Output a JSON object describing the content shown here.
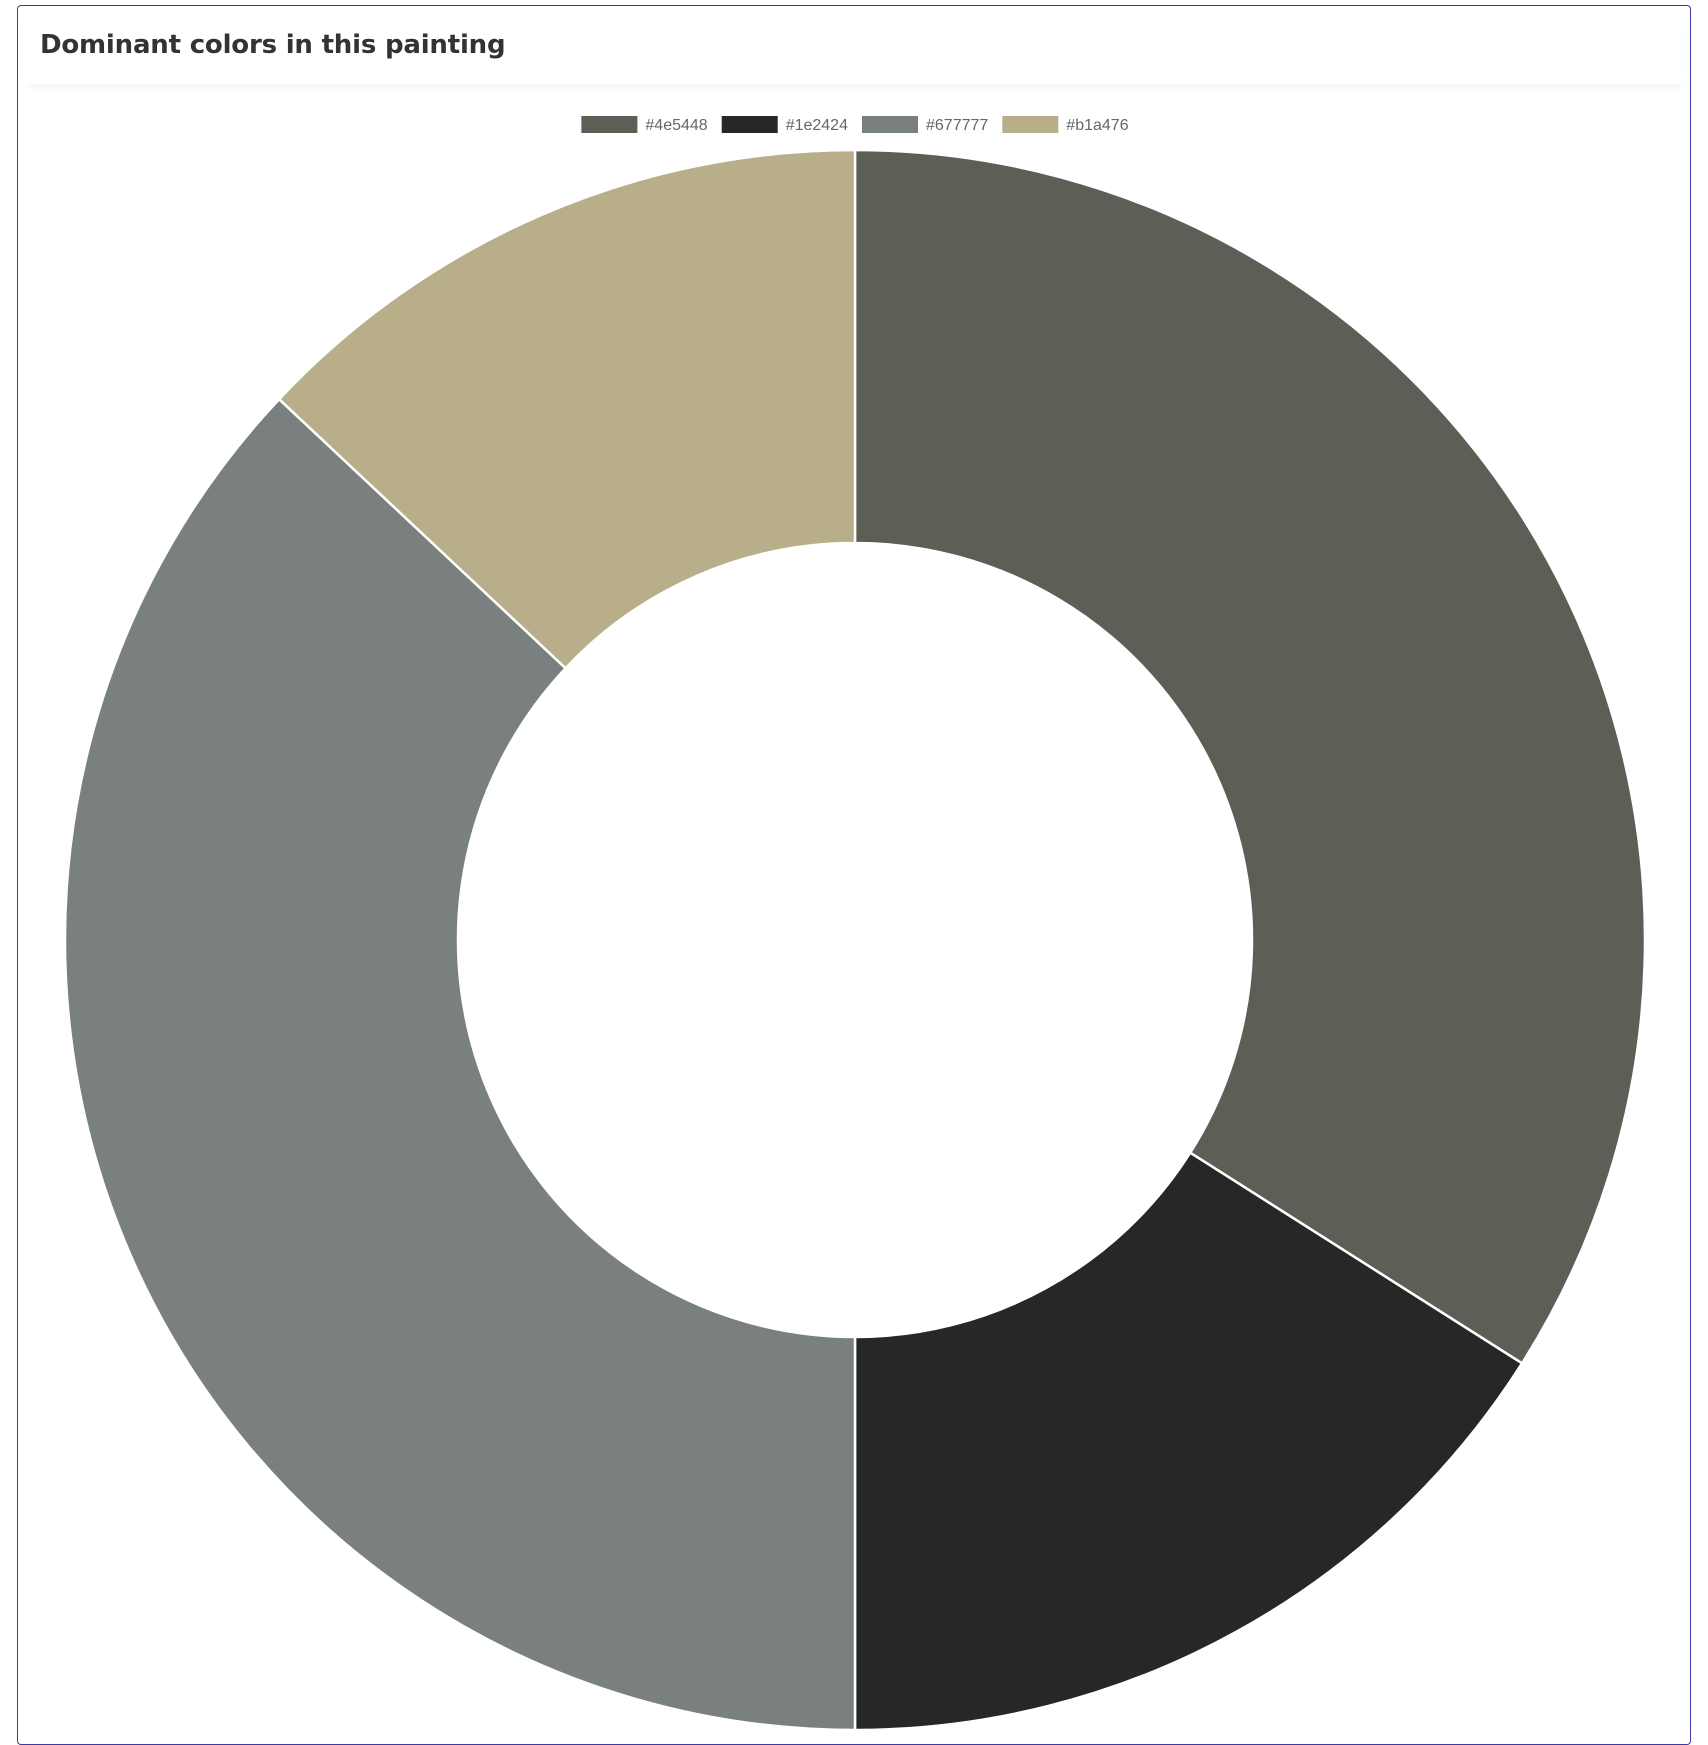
{
  "card": {
    "title": "Dominant colors in this painting"
  },
  "chart_data": {
    "type": "pie",
    "variant": "doughnut",
    "title": "Dominant colors in this painting",
    "legend_position": "top",
    "categories": [
      "#4e5448",
      "#1e2424",
      "#677777",
      "#b1a476"
    ],
    "values": [
      34,
      16,
      37,
      13
    ],
    "colors": [
      "#5b5f55",
      "#252827",
      "#7a8080",
      "#b8af8a"
    ]
  }
}
